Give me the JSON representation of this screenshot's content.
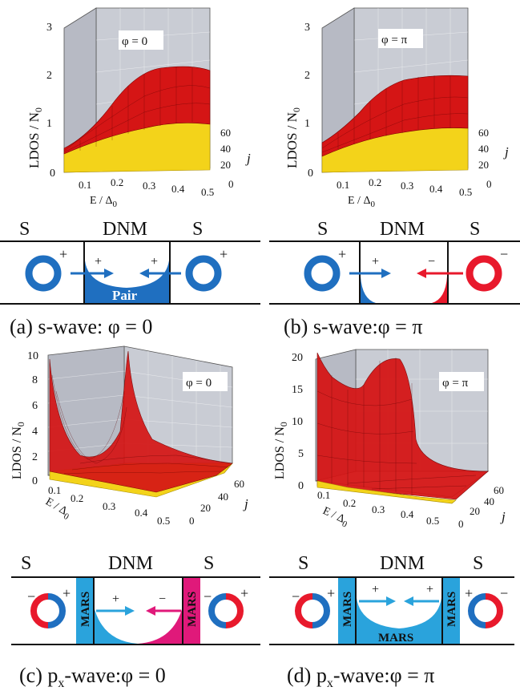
{
  "plots": {
    "a": {
      "ylabel": "LDOS / N",
      "ylabel_sub": "0",
      "xlabel": "E / Δ",
      "xlabel_sub": "0",
      "zlabel": "j",
      "phi": "φ = 0",
      "yticks": [
        "3",
        "2",
        "1",
        "0"
      ],
      "xticks": [
        "0.1",
        "0.2",
        "0.3",
        "0.4",
        "0.5"
      ],
      "zticks": [
        "60",
        "40",
        "20",
        "0"
      ]
    },
    "b": {
      "ylabel": "LDOS / N",
      "ylabel_sub": "0",
      "xlabel": "E / Δ",
      "xlabel_sub": "0",
      "zlabel": "j",
      "phi": "φ = π",
      "yticks": [
        "3",
        "2",
        "1",
        "0"
      ],
      "xticks": [
        "0.1",
        "0.2",
        "0.3",
        "0.4",
        "0.5"
      ],
      "zticks": [
        "60",
        "40",
        "20",
        "0"
      ]
    },
    "c": {
      "ylabel": "LDOS / N",
      "ylabel_sub": "0",
      "xlabel": "E / Δ",
      "xlabel_sub": "0",
      "zlabel": "j",
      "phi": "φ = 0",
      "yticks": [
        "10",
        "8",
        "6",
        "4",
        "2",
        "0"
      ],
      "xticks": [
        "0.1",
        "0.2",
        "0.3",
        "0.4",
        "0.5"
      ],
      "zticks": [
        "60",
        "40",
        "20",
        "0"
      ]
    },
    "d": {
      "ylabel": "LDOS / N",
      "ylabel_sub": "0",
      "xlabel": "E / Δ",
      "xlabel_sub": "0",
      "zlabel": "j",
      "phi": "φ = π",
      "yticks": [
        "20",
        "15",
        "10",
        "5",
        "0"
      ],
      "xticks": [
        "0.1",
        "0.2",
        "0.3",
        "0.4",
        "0.5"
      ],
      "zticks": [
        "60",
        "40",
        "20",
        "0"
      ]
    }
  },
  "schematics": {
    "a": {
      "left": "S",
      "middle": "DNM",
      "right": "S",
      "pair": "Pair",
      "plus": "+",
      "minus": "−"
    },
    "b": {
      "left": "S",
      "middle": "DNM",
      "right": "S",
      "plus": "+",
      "minus": "−"
    },
    "c": {
      "left": "S",
      "middle": "DNM",
      "right": "S",
      "mars": "MARS",
      "plus": "+",
      "minus": "−"
    },
    "d": {
      "left": "S",
      "middle": "DNM",
      "right": "S",
      "mars": "MARS",
      "plus": "+",
      "minus": "−"
    }
  },
  "captions": {
    "a": "(a) s-wave: φ = 0",
    "b": "(b) s-wave:φ = π",
    "c_pre": "(c) p",
    "c_sub": "x",
    "c_post": "-wave:φ = 0",
    "d_pre": "(d) p",
    "d_sub": "x",
    "d_post": "-wave:φ = π"
  },
  "colors": {
    "blue": "#1f6fc0",
    "red": "#e8192c",
    "cyan": "#2aa3dc",
    "magenta": "#e0197a",
    "surface_red": "#d51515",
    "surface_yellow": "#f3d31a",
    "wall": "#c9ccd4"
  }
}
